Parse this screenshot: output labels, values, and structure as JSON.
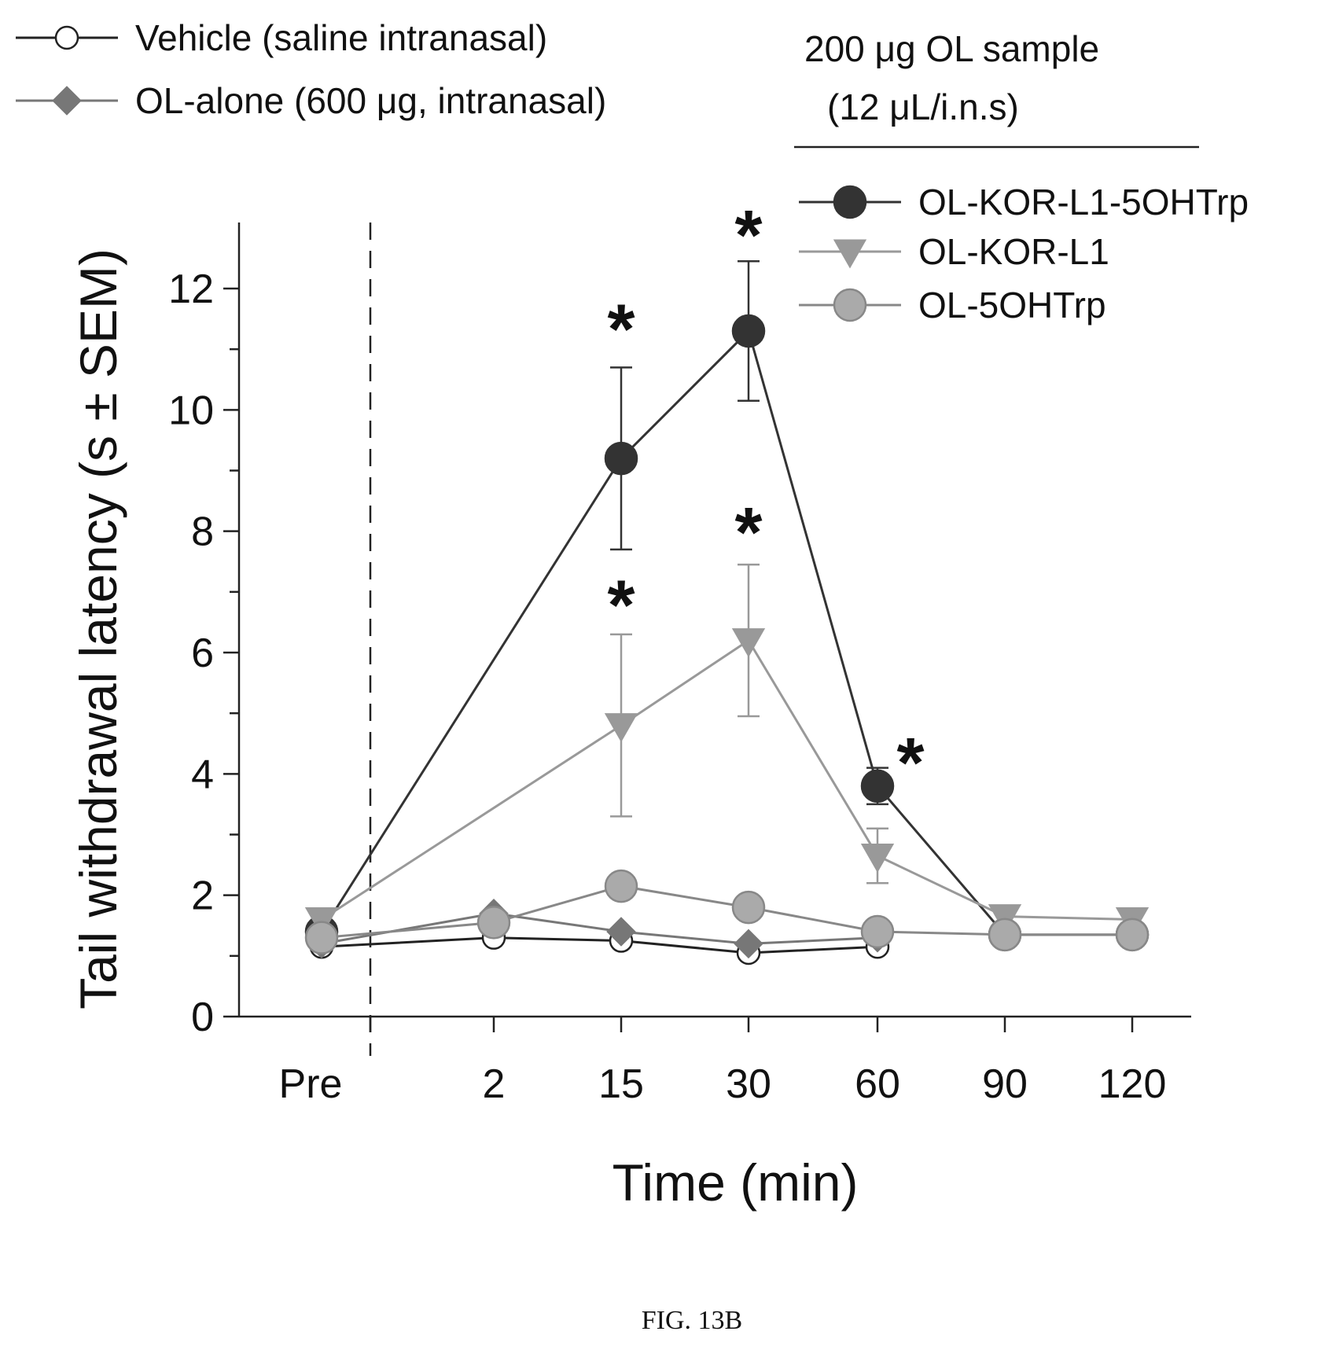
{
  "chart_data": {
    "type": "line",
    "xlabel": "Time (min)",
    "ylabel": "Tail withdrawal latency (s ± SEM)",
    "categories": [
      "Pre",
      "2",
      "15",
      "30",
      "60",
      "90",
      "120"
    ],
    "yticks": [
      "0",
      "2",
      "4",
      "6",
      "8",
      "10",
      "12"
    ],
    "ylim": [
      0,
      13
    ],
    "grid": false,
    "legend_position": "top",
    "group_label": "200 μg OL sample (12 μL/i.n.s)",
    "group_label_lines": [
      "200 μg OL sample",
      "(12 μL/i.n.s)"
    ],
    "series": [
      {
        "name": "Vehicle (saline intranasal)",
        "x": [
          "Pre",
          "2",
          "15",
          "30",
          "60"
        ],
        "values": [
          1.15,
          1.3,
          1.25,
          1.05,
          1.15
        ],
        "marker": "circle-open",
        "color": "#ffffff",
        "stroke": "#222222"
      },
      {
        "name": "OL-alone (600 μg, intranasal)",
        "x": [
          "Pre",
          "2",
          "15",
          "30",
          "60"
        ],
        "values": [
          1.2,
          1.7,
          1.4,
          1.2,
          1.3
        ],
        "marker": "diamond",
        "color": "#777777",
        "stroke": "#777777"
      },
      {
        "name": "OL-KOR-L1-5OHTrp",
        "x": [
          "Pre",
          "15",
          "30",
          "60",
          "90",
          "120"
        ],
        "values": [
          1.4,
          9.2,
          11.3,
          3.8,
          1.35,
          1.35
        ],
        "error": [
          null,
          1.5,
          1.15,
          0.3,
          null,
          null
        ],
        "marker": "circle",
        "color": "#333333",
        "stroke": "#333333"
      },
      {
        "name": "OL-KOR-L1",
        "x": [
          "Pre",
          "15",
          "30",
          "60",
          "90",
          "120"
        ],
        "values": [
          1.6,
          4.8,
          6.2,
          2.65,
          1.65,
          1.6
        ],
        "error": [
          null,
          1.5,
          1.25,
          0.45,
          null,
          null
        ],
        "marker": "triangle-down",
        "color": "#999999",
        "stroke": "#999999"
      },
      {
        "name": "OL-5OHTrp",
        "x": [
          "Pre",
          "2",
          "15",
          "30",
          "60",
          "90",
          "120"
        ],
        "values": [
          1.3,
          1.55,
          2.15,
          1.8,
          1.4,
          1.35,
          1.35
        ],
        "marker": "circle",
        "color": "#aaaaaa",
        "stroke": "#888888"
      }
    ],
    "annotations": [
      {
        "text": "*",
        "x": "15",
        "y": 11.45
      },
      {
        "text": "*",
        "x": "30",
        "y": 13.0
      },
      {
        "text": "*",
        "x": "15",
        "y": 6.9
      },
      {
        "text": "*",
        "x": "30",
        "y": 8.1
      },
      {
        "text": "*",
        "x": "60",
        "y": 4.3
      }
    ]
  },
  "caption": "FIG. 13B"
}
